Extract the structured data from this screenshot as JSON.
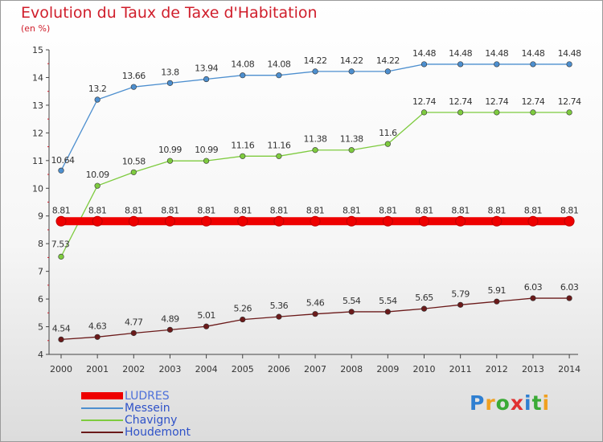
{
  "header": {
    "title": "Evolution du Taux de Taxe d'Habitation",
    "subtitle": "(en %)"
  },
  "logo": {
    "letters": [
      "P",
      "r",
      "o",
      "x",
      "i",
      "t",
      "i"
    ],
    "colors": [
      "#2f7fd1",
      "#f0a020",
      "#3aaa35",
      "#e03030",
      "#2f7fd1",
      "#3aaa35",
      "#f0a020"
    ]
  },
  "chart_data": {
    "type": "line",
    "title": "Evolution du Taux de Taxe d'Habitation",
    "ylabel": "(en %)",
    "xlabel": "",
    "x": [
      2000,
      2001,
      2002,
      2003,
      2004,
      2005,
      2006,
      2007,
      2008,
      2009,
      2010,
      2011,
      2012,
      2013,
      2014
    ],
    "ylim": [
      4,
      15
    ],
    "yticks": [
      4,
      5,
      6,
      7,
      8,
      9,
      10,
      11,
      12,
      13,
      14,
      15
    ],
    "grid": false,
    "legend_position": "bottom-left",
    "series": [
      {
        "name": "LUDRES",
        "color": "#ee0000",
        "line_width": 10,
        "values": [
          8.81,
          8.81,
          8.81,
          8.81,
          8.81,
          8.81,
          8.81,
          8.81,
          8.81,
          8.81,
          8.81,
          8.81,
          8.81,
          8.81,
          8.81
        ],
        "labels": [
          "8.81",
          "8.81",
          "8.81",
          "8.81",
          "8.81",
          "8.81",
          "8.81",
          "8.81",
          "8.81",
          "8.81",
          "8.81",
          "8.81",
          "8.81",
          "8.81",
          "8.81"
        ]
      },
      {
        "name": "Messein",
        "color": "#4d8fcf",
        "line_width": 1.3,
        "values": [
          10.64,
          13.2,
          13.66,
          13.8,
          13.94,
          14.08,
          14.08,
          14.22,
          14.22,
          14.22,
          14.48,
          14.48,
          14.48,
          14.48,
          14.48
        ],
        "labels": [
          "10.64",
          "13.2",
          "13.66",
          "13.8",
          "13.94",
          "14.08",
          "14.08",
          "14.22",
          "14.22",
          "14.22",
          "14.48",
          "14.48",
          "14.48",
          "14.48",
          "14.48"
        ]
      },
      {
        "name": "Chavigny",
        "color": "#7ecb3f",
        "line_width": 1.3,
        "values": [
          7.53,
          10.09,
          10.58,
          10.99,
          10.99,
          11.16,
          11.16,
          11.38,
          11.38,
          11.6,
          12.74,
          12.74,
          12.74,
          12.74,
          12.74
        ],
        "labels": [
          "7.53",
          "10.09",
          "10.58",
          "10.99",
          "10.99",
          "11.16",
          "11.16",
          "11.38",
          "11.38",
          "11.6",
          "12.74",
          "12.74",
          "12.74",
          "12.74",
          "12.74"
        ]
      },
      {
        "name": "Houdemont",
        "color": "#6b1a1a",
        "line_width": 1.3,
        "values": [
          4.54,
          4.63,
          4.77,
          4.89,
          5.01,
          5.26,
          5.36,
          5.46,
          5.54,
          5.54,
          5.65,
          5.79,
          5.91,
          6.03,
          6.03
        ],
        "labels": [
          "4.54",
          "4.63",
          "4.77",
          "4.89",
          "5.01",
          "5.26",
          "5.36",
          "5.46",
          "5.54",
          "5.54",
          "5.65",
          "5.79",
          "5.91",
          "6.03",
          "6.03"
        ]
      }
    ]
  }
}
